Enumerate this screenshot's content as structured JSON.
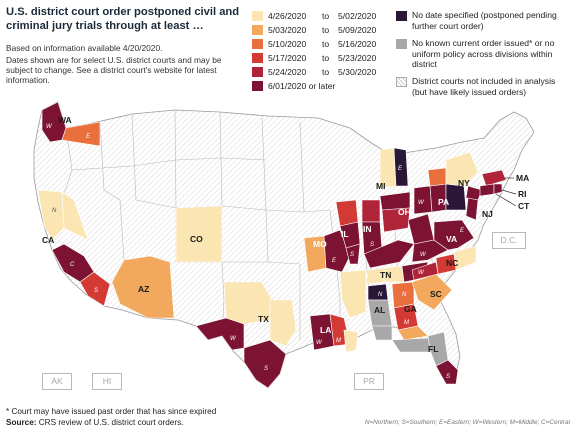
{
  "title": "U.S. district court order postponed civil and criminal jury trials through at least …",
  "notes": [
    "Based on information available 4/20/2020.",
    "Dates shown are for select U.S. district courts and may be subject to change. See a district court's website for latest information."
  ],
  "legend": {
    "date_ranges": [
      {
        "from": "4/26/2020",
        "sep": "to",
        "to": "5/02/2020",
        "color": "#fbe6b3"
      },
      {
        "from": "5/03/2020",
        "sep": "to",
        "to": "5/09/2020",
        "color": "#f2a95d"
      },
      {
        "from": "5/10/2020",
        "sep": "to",
        "to": "5/16/2020",
        "color": "#e9703c"
      },
      {
        "from": "5/17/2020",
        "sep": "to",
        "to": "5/23/2020",
        "color": "#d33a34"
      },
      {
        "from": "5/24/2020",
        "sep": "to",
        "to": "5/30/2020",
        "color": "#b0243a"
      },
      {
        "from": "6/01/2020 or later",
        "sep": "",
        "to": "",
        "color": "#7d1333"
      }
    ],
    "special": [
      {
        "label": "No date specified (postponed pending further court order)",
        "color": "#2a1738"
      },
      {
        "label": "No known current order issued* or no uniform policy across divisions within district",
        "color": "#a8a8a8"
      },
      {
        "label": "District courts not included in analysis (but have likely issued orders)",
        "color": "#ffffff"
      }
    ]
  },
  "state_labels": [
    "WA",
    "CA",
    "CO",
    "AZ",
    "TX",
    "MO",
    "IL",
    "IN",
    "OH",
    "MI",
    "NY",
    "PA",
    "MA",
    "RI",
    "CT",
    "NJ",
    "VA",
    "NC",
    "TN",
    "SC",
    "GA",
    "AL",
    "LA",
    "FL"
  ],
  "district_labels": [
    "W",
    "E",
    "N",
    "S",
    "M",
    "C"
  ],
  "boxes": [
    "D.C.",
    "AK",
    "HI",
    "PR"
  ],
  "footnote": "* Court may have issued past order that has since expired",
  "source_label": "Source:",
  "source_text": "CRS review of U.S. district court orders.",
  "abbreviations": "N=Northern; S=Southern; E=Eastern; W=Western; M=Middle; C=Central"
}
